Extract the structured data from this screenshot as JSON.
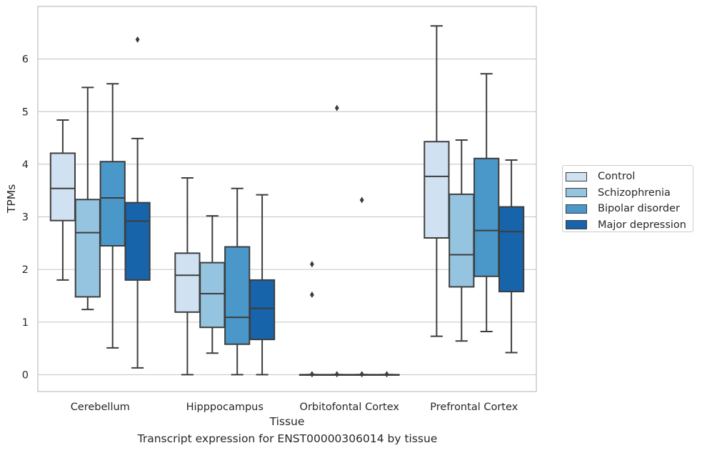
{
  "chart_data": {
    "type": "box",
    "title": "",
    "caption": "Transcript expression for ENST00000306014 by tissue",
    "xlabel": "Tissue",
    "ylabel": "TPMs",
    "ylim": [
      -0.32,
      7.0
    ],
    "yticks": [
      0,
      1,
      2,
      3,
      4,
      5,
      6
    ],
    "grid": "horizontal",
    "legend_position": "right",
    "categories": [
      "Cerebellum",
      "Hipppocampus",
      "Orbitofontal Cortex",
      "Prefrontal Cortex"
    ],
    "series": [
      {
        "name": "Control",
        "color": "#d0e1f2",
        "boxes": [
          {
            "min": 1.8,
            "q1": 2.93,
            "median": 3.54,
            "q3": 4.21,
            "max": 4.84,
            "outliers": []
          },
          {
            "min": 0.0,
            "q1": 1.19,
            "median": 1.89,
            "q3": 2.31,
            "max": 3.74,
            "outliers": []
          },
          {
            "min": 0.0,
            "q1": 0.0,
            "median": 0.0,
            "q3": 0.0,
            "max": 0.0,
            "outliers": [
              1.52,
              2.1,
              0.01
            ]
          },
          {
            "min": 0.73,
            "q1": 2.6,
            "median": 3.77,
            "q3": 4.43,
            "max": 6.63,
            "outliers": []
          }
        ]
      },
      {
        "name": "Schizophrenia",
        "color": "#94c4df",
        "boxes": [
          {
            "min": 1.24,
            "q1": 1.48,
            "median": 2.7,
            "q3": 3.33,
            "max": 5.46,
            "outliers": []
          },
          {
            "min": 0.41,
            "q1": 0.9,
            "median": 1.54,
            "q3": 2.13,
            "max": 3.02,
            "outliers": []
          },
          {
            "min": 0.0,
            "q1": 0.0,
            "median": 0.0,
            "q3": 0.0,
            "max": 0.0,
            "outliers": [
              5.07,
              0.01
            ]
          },
          {
            "min": 0.64,
            "q1": 1.67,
            "median": 2.28,
            "q3": 3.43,
            "max": 4.46,
            "outliers": []
          }
        ]
      },
      {
        "name": "Bipolar disorder",
        "color": "#4a98c9",
        "boxes": [
          {
            "min": 0.51,
            "q1": 2.45,
            "median": 3.36,
            "q3": 4.05,
            "max": 5.53,
            "outliers": []
          },
          {
            "min": 0.0,
            "q1": 0.58,
            "median": 1.09,
            "q3": 2.43,
            "max": 3.54,
            "outliers": []
          },
          {
            "min": 0.0,
            "q1": 0.0,
            "median": 0.0,
            "q3": 0.0,
            "max": 0.0,
            "outliers": [
              3.32,
              0.01
            ]
          },
          {
            "min": 0.82,
            "q1": 1.87,
            "median": 2.74,
            "q3": 4.11,
            "max": 5.72,
            "outliers": []
          }
        ]
      },
      {
        "name": "Major depression",
        "color": "#1764ab",
        "boxes": [
          {
            "min": 0.13,
            "q1": 1.8,
            "median": 2.92,
            "q3": 3.27,
            "max": 4.49,
            "outliers": [
              6.37
            ]
          },
          {
            "min": 0.0,
            "q1": 0.67,
            "median": 1.26,
            "q3": 1.8,
            "max": 3.42,
            "outliers": []
          },
          {
            "min": 0.0,
            "q1": 0.0,
            "median": 0.0,
            "q3": 0.0,
            "max": 0.0,
            "outliers": [
              0.01
            ]
          },
          {
            "min": 0.42,
            "q1": 1.58,
            "median": 2.72,
            "q3": 3.19,
            "max": 4.08,
            "outliers": []
          }
        ]
      }
    ]
  }
}
